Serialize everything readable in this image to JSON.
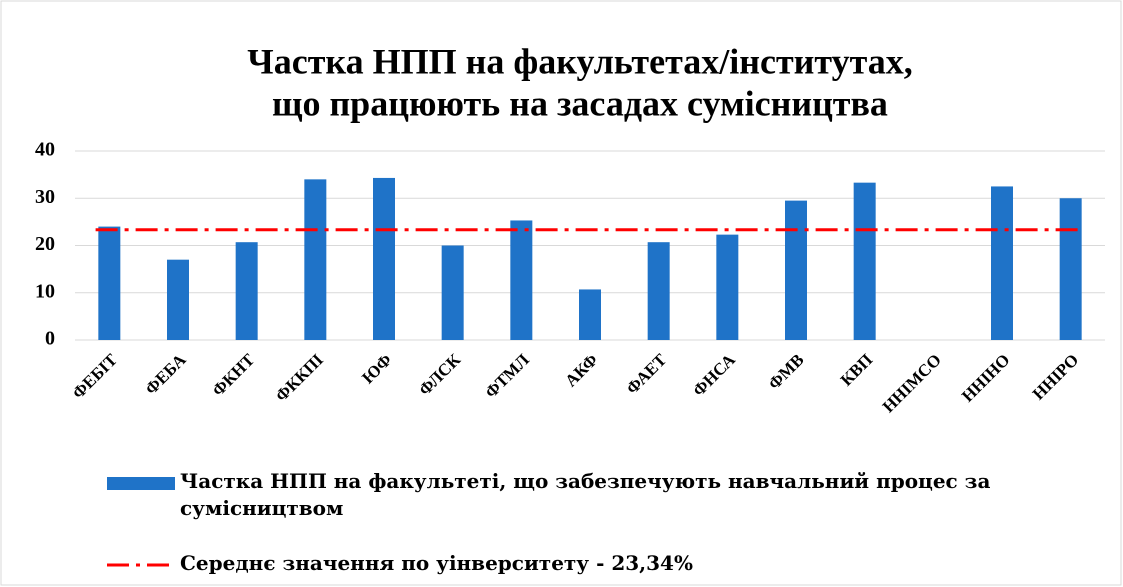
{
  "chart_data": {
    "type": "bar",
    "title": [
      "Частка НПП на факультетах/інститутах,",
      "що працюють на засадах сумісництва"
    ],
    "categories": [
      "ФЕБІТ",
      "ФЕБА",
      "ФКНТ",
      "ФККПІ",
      "ЮФ",
      "ФЛСК",
      "ФТМЛ",
      "АКФ",
      "ФАЕТ",
      "ФНСА",
      "ФМВ",
      "КВП",
      "ННІМСО",
      "ННІНО",
      "ННІРО"
    ],
    "series": [
      {
        "name": "Частка НПП на факультеті, що забезпечують навчальний процес за сумісництвом",
        "color": "#1f73c8",
        "values": [
          24,
          17,
          20.7,
          34,
          34.3,
          20,
          25.3,
          10.7,
          20.7,
          22.3,
          29.5,
          33.3,
          0,
          32.5,
          30
        ]
      }
    ],
    "reference_line": {
      "name": "Середнє значення по уінверситету - 23,34%",
      "value": 23.34,
      "color": "#ff0000"
    },
    "ylim": [
      0,
      40
    ],
    "yticks": [
      0,
      10,
      20,
      30,
      40
    ],
    "grid": true
  }
}
